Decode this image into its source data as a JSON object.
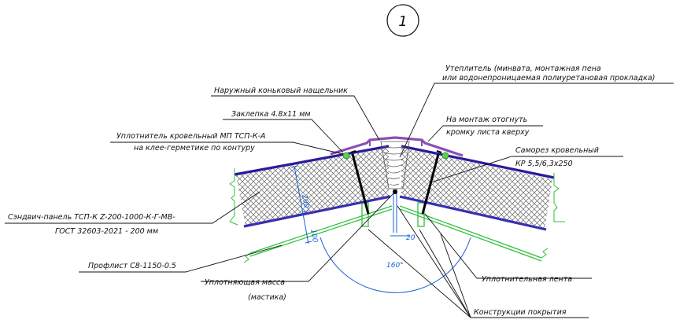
{
  "callout_number": "1",
  "labels": {
    "outer_ridge_flashing": "Наружный коньковый нащельник",
    "insulation_line1": "Утеплитель (минвата, монтажная пена",
    "insulation_line2": "или водонепроницаемая полиуретановая прокладка)",
    "rivet": "Заклепка 4.8х11 мм",
    "bend_line1": "На монтаж отогнуть",
    "bend_line2": "кромку листа кверху",
    "seal_line1": "Уплотнитель кровельный МП ТСП-К-А",
    "seal_line2": "на клее-герметике по контуру",
    "screw_line1": "Саморез кровельный",
    "screw_line2": "КР 5,5/6,3х250",
    "panel_line1": "Сэндвич-панель ТСП-К Z-200-1000-К-Г-МВ-",
    "panel_line2": "ГОСТ 32603-2021 - 200 мм",
    "profile_sheet": "Профлист С8-1150-0.5",
    "sealing_mass_line1": "Уплотняющая масса",
    "sealing_mass_line2": "(мастика)",
    "sealing_tape": "Уплотнительная лента",
    "roof_structures": "Конструкции покрытия"
  },
  "dimensions": {
    "panel_thickness": "200",
    "support_offset": "100",
    "gap": "20",
    "angle": "160°"
  },
  "colors": {
    "panel_skin": "#2b1b9c",
    "flashing": "#8a4fb0",
    "dimension": "#1a5fd6",
    "structure": "#2fbf3a",
    "insulation_hatch": "#555555"
  }
}
